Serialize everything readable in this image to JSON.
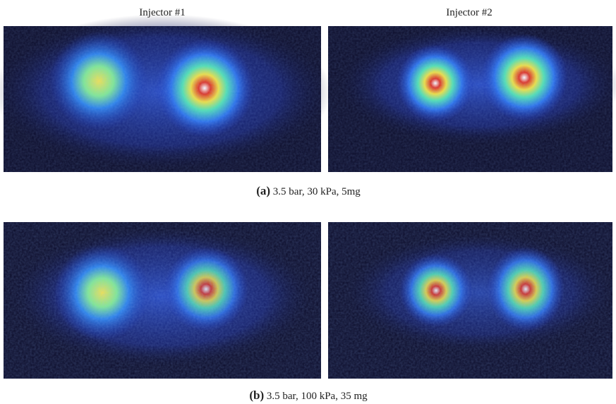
{
  "figure": {
    "columns": [
      "Injector #1",
      "Injector #2"
    ],
    "panels": [
      {
        "label": "(a)",
        "caption": "3.5 bar, 30 kPa, 5mg"
      },
      {
        "label": "(b)",
        "caption": "3.5 bar, 100 kPa, 35 mg"
      }
    ]
  }
}
